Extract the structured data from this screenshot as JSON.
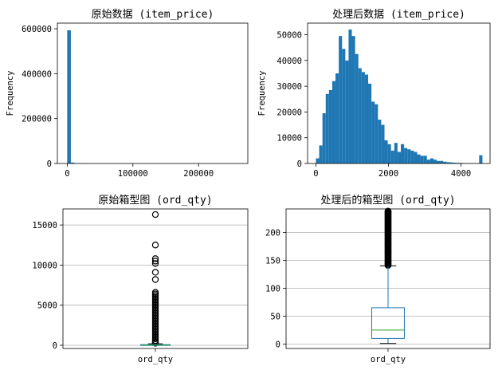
{
  "chart_data": [
    {
      "type": "bar",
      "title": "原始数据 (item_price)",
      "ylabel": "Frequency",
      "xlim": [
        -15000,
        275000
      ],
      "ylim": [
        0,
        625000
      ],
      "xticks": [
        0,
        100000,
        200000
      ],
      "yticks": [
        0,
        200000,
        400000,
        600000
      ],
      "bin_width": 5500,
      "bars": [
        {
          "x": 0,
          "value": 593000
        },
        {
          "x": 5500,
          "value": 4000
        },
        {
          "x": 11000,
          "value": 700
        },
        {
          "x": 16500,
          "value": 200
        },
        {
          "x": 22000,
          "value": 100
        }
      ],
      "grid": false,
      "color": "#1f77b4"
    },
    {
      "type": "bar",
      "title": "处理后数据 (item_price)",
      "ylabel": "Frequency",
      "xlim": [
        -230,
        4800
      ],
      "ylim": [
        0,
        54500
      ],
      "xticks": [
        0,
        2000,
        4000
      ],
      "yticks": [
        0,
        10000,
        20000,
        30000,
        40000,
        50000
      ],
      "bin_width": 90,
      "bins_start": 0,
      "values": [
        2000,
        7000,
        19500,
        27000,
        28500,
        32000,
        35000,
        49500,
        44500,
        40000,
        52000,
        49500,
        42500,
        37000,
        35500,
        34500,
        31000,
        24000,
        23000,
        17000,
        15000,
        9000,
        7500,
        5000,
        8000,
        4500,
        7500,
        6000,
        5500,
        5000,
        4500,
        3500,
        3000,
        3000,
        1500,
        2000,
        1500,
        1000,
        1000,
        700,
        500,
        400,
        300,
        250,
        200,
        150,
        100,
        80,
        60,
        50,
        3200
      ],
      "grid": false,
      "color": "#1f77b4"
    },
    {
      "type": "box",
      "title": "原始箱型图 (ord_qty)",
      "xticklabel": "ord_qty",
      "ylim": [
        -400,
        17000
      ],
      "yticks": [
        0,
        5000,
        10000,
        15000
      ],
      "box": {
        "q1": 10,
        "median": 30,
        "q3": 80,
        "whisker_low": 1,
        "whisker_high": 190
      },
      "outliers": [
        16300,
        12500,
        10800,
        10500,
        10200,
        9100,
        8200,
        6600,
        6400,
        6200,
        6000,
        5800,
        5600,
        5400,
        5200,
        5000,
        4800,
        4600,
        4400,
        4200,
        4000,
        3800,
        3600,
        3400,
        3200,
        3000,
        2800,
        2600,
        2400,
        2200,
        2000,
        1800,
        1600,
        1400,
        1200,
        1000,
        800,
        600,
        400,
        300,
        250
      ],
      "grid": true,
      "box_color": "#1f77b4",
      "median_color": "#2ca02c"
    },
    {
      "type": "box",
      "title": "处理后的箱型图 (ord_qty)",
      "xticklabel": "ord_qty",
      "ylim": [
        -8,
        242
      ],
      "yticks": [
        0,
        50,
        100,
        150,
        200
      ],
      "box": {
        "q1": 10,
        "median": 25,
        "q3": 65,
        "whisker_low": 1,
        "whisker_high": 140
      },
      "outliers_range": [
        141,
        238
      ],
      "grid": true,
      "box_color": "#1f77b4",
      "median_color": "#2ca02c"
    }
  ]
}
